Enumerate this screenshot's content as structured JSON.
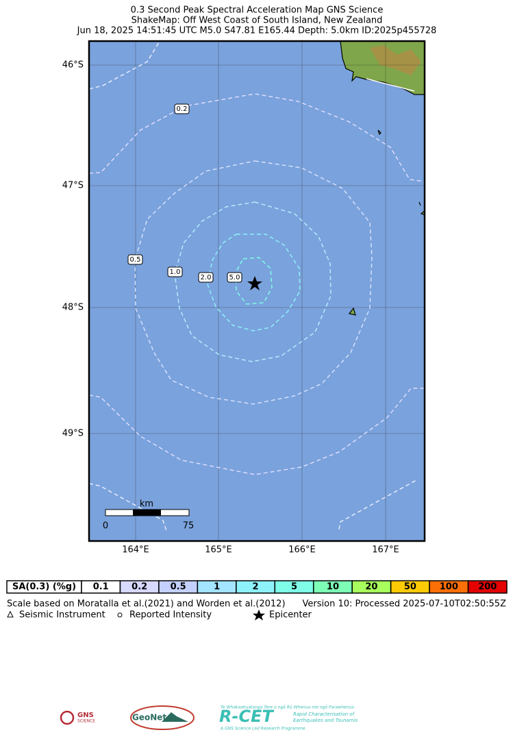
{
  "title": [
    "0.3 Second Peak Spectral Acceleration Map GNS Science",
    "ShakeMap: Off West Coast of South Island, New Zealand",
    "Jun 18, 2025 14:51:45 UTC M5.0 S47.81 E165.44 Depth: 5.0km ID:2025p455728"
  ],
  "map": {
    "lat_labels": [
      "46°S",
      "47°S",
      "48°S",
      "49°S"
    ],
    "lon_labels": [
      "164°E",
      "165°E",
      "166°E",
      "167°E"
    ],
    "contour_labels": [
      "0.2",
      "0.5",
      "1.0",
      "2.0",
      "5.0"
    ],
    "scale_bar": {
      "unit": "km",
      "labels": [
        "0",
        "75"
      ]
    }
  },
  "legend": {
    "title": "SA(0.3) (%g)",
    "items": [
      {
        "label": "0.1",
        "color": "#ffffff"
      },
      {
        "label": "0.2",
        "color": "#d7d9ff"
      },
      {
        "label": "0.5",
        "color": "#c4d0ff"
      },
      {
        "label": "1",
        "color": "#a3e4ff"
      },
      {
        "label": "2",
        "color": "#8ef2fb"
      },
      {
        "label": "5",
        "color": "#7ffde9"
      },
      {
        "label": "10",
        "color": "#7dfdb6"
      },
      {
        "label": "20",
        "color": "#a8fe5c"
      },
      {
        "label": "50",
        "color": "#fdcb06"
      },
      {
        "label": "100",
        "color": "#fd6f07"
      },
      {
        "label": "200",
        "color": "#e40202"
      }
    ]
  },
  "notes": {
    "scale": "Scale based on Moratalla et al.(2021) and Worden et al.(2012)",
    "version": "Version 10: Processed 2025-07-10T02:50:55Z"
  },
  "symbols": [
    "Seismic Instrument",
    "Reported Intensity",
    "Epicenter"
  ],
  "logos": {
    "gns": "GNS",
    "gns_sub": "SCIENCE",
    "geonet": "GeoNet",
    "rcet_top": "Te Whakaahuatanga Tere o ngā Rū Whenua me ngā Parawhenua",
    "rcet": "R-CET",
    "rcet_desc": [
      "Rapid Characterisation of",
      "Earthquakes and Tsunamis"
    ],
    "rcet_foot": "A GNS Science Led Research Programme"
  }
}
